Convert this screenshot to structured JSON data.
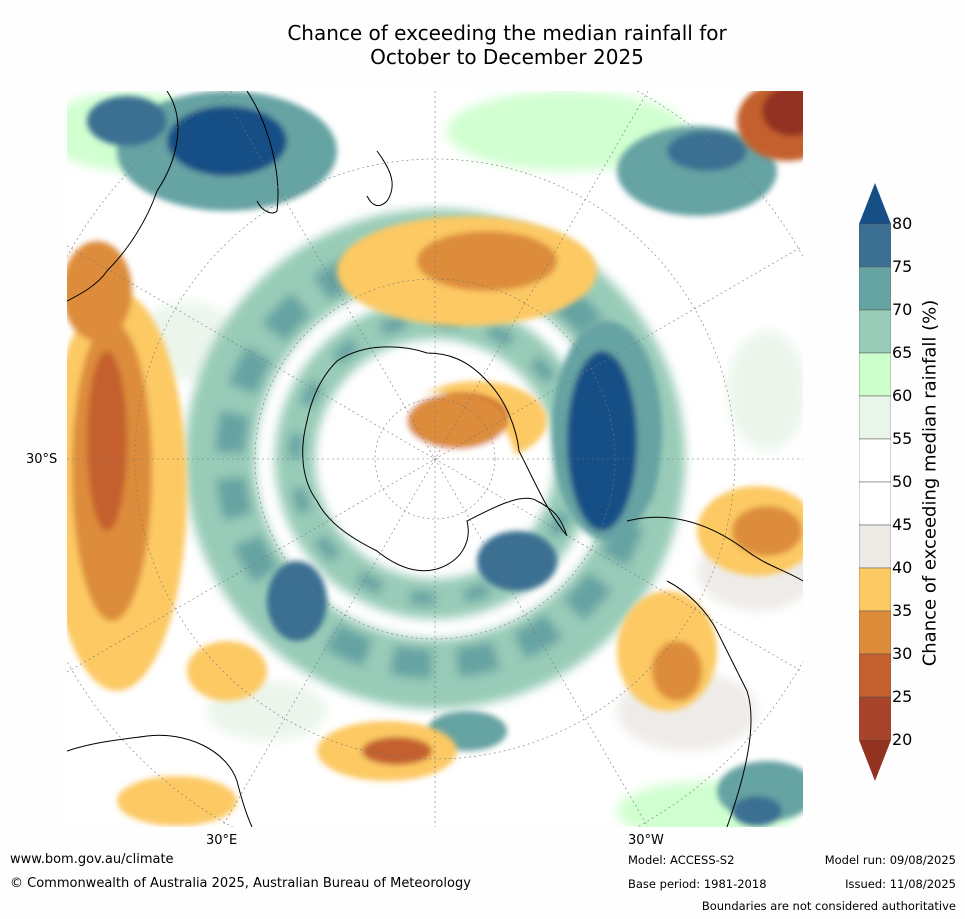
{
  "title_line1": "Chance of exceeding the median rainfall for",
  "title_line2": "October to December 2025",
  "map": {
    "lat_label": "30°S",
    "lon_labels": [
      "30°E",
      "30°W"
    ],
    "projection": "south-polar-stereographic"
  },
  "colorbar": {
    "title": "Chance of exceeding median rainfall (%)",
    "ticks": [
      "80",
      "75",
      "70",
      "65",
      "60",
      "55",
      "50",
      "45",
      "40",
      "35",
      "30",
      "25",
      "20"
    ],
    "colors": [
      "#164f86",
      "#3b7092",
      "#66a3a3",
      "#99ccb8",
      "#ccffcc",
      "#eaf5ea",
      "#ffffff",
      "#ffffff",
      "#edeae6",
      "#fcc963",
      "#dd8c3a",
      "#c4602e",
      "#a8442a",
      "#923321"
    ]
  },
  "footer": {
    "website": "www.bom.gov.au/climate",
    "copyright": "© Commonwealth of Australia 2025, Australian Bureau of Meteorology",
    "model": "Model: ACCESS-S2",
    "base_period": "Base period: 1981-2018",
    "model_run": "Model run: 09/08/2025",
    "issued": "Issued: 11/08/2025",
    "disclaimer": "Boundaries are not considered authoritative"
  }
}
